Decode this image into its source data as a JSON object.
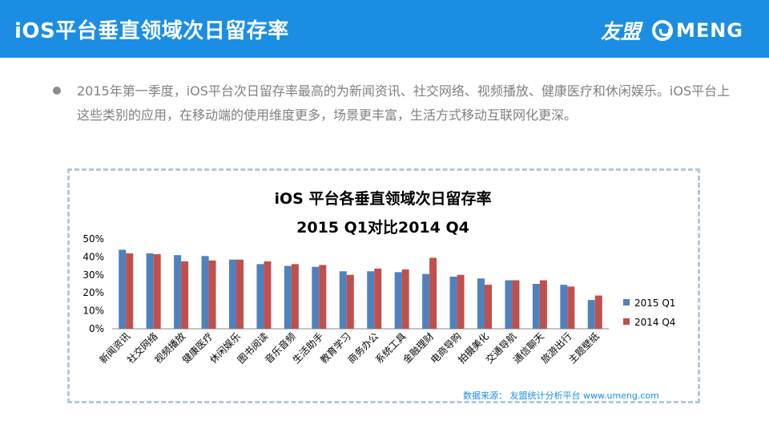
{
  "header": {
    "title": "iOS平台垂直领域次日留存率",
    "logo_cn": "友盟",
    "logo_en": "MENG"
  },
  "bullet": {
    "text": "2015年第一季度，iOS平台次日留存率最高的为新闻资讯、社交网络、视频播放、健康医疗和休闲娱乐。iOS平台上这些类别的应用，在移动端的使用维度更多，场景更丰富，生活方式移动互联网化更深。"
  },
  "source": "数据来源： 友盟统计分析平台 www.umeng.com",
  "chart_data": {
    "type": "bar",
    "title": "iOS 平台各垂直领域次日留存率",
    "subtitle": "2015 Q1对比2014 Q4",
    "categories": [
      "新闻资讯",
      "社交网络",
      "视频播放",
      "健康医疗",
      "休闲娱乐",
      "图书阅读",
      "音乐音频",
      "生活助手",
      "教育学习",
      "商务办公",
      "系统工具",
      "金融理财",
      "电商导购",
      "拍摄美化",
      "交通导航",
      "通信聊天",
      "旅游出行",
      "主题壁纸"
    ],
    "series": [
      {
        "name": "2015 Q1",
        "color": "#4f81bd",
        "values": [
          44,
          42,
          41,
          40.5,
          38.5,
          36,
          35,
          34.5,
          32,
          32,
          31.5,
          30.5,
          29,
          28,
          27,
          25,
          24.5,
          16
        ]
      },
      {
        "name": "2014 Q4",
        "color": "#c0504d",
        "values": [
          42,
          41.5,
          37.5,
          38,
          38.5,
          37.5,
          36,
          35.5,
          30,
          33.5,
          33,
          39.5,
          30,
          24.5,
          27,
          27,
          23.5,
          18.5
        ]
      }
    ],
    "ylim": [
      0,
      50
    ],
    "yticks": [
      "0%",
      "10%",
      "20%",
      "30%",
      "40%",
      "50%"
    ],
    "legend": "right",
    "grid": false
  }
}
